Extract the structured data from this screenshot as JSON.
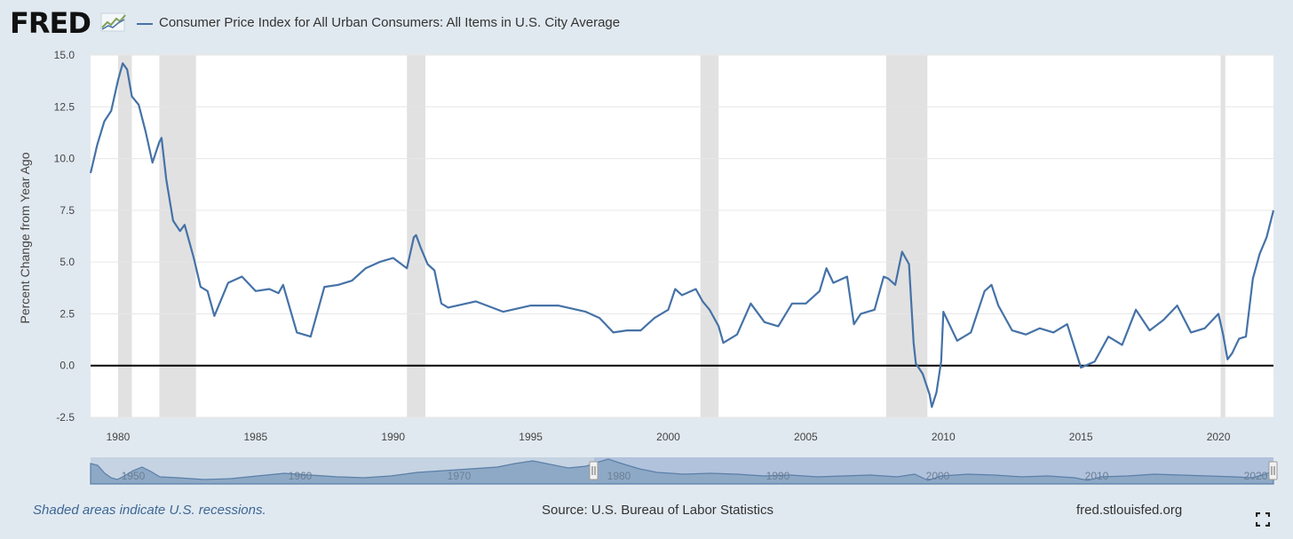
{
  "header": {
    "logo": "FRED",
    "logo_icon": "line-chart-icon",
    "series_title": "Consumer Price Index for All Urban Consumers: All Items in U.S. City Average"
  },
  "footer": {
    "recession_note": "Shaded areas indicate U.S. recessions.",
    "source": "Source: U.S. Bureau of Labor Statistics",
    "site": "fred.stlouisfed.org",
    "fullscreen_icon": "fullscreen-icon"
  },
  "colors": {
    "series": "#4572a7",
    "recession": "#e1e1e1",
    "background": "#e1e9f0",
    "plot": "#ffffff",
    "zero_line": "#000000"
  },
  "chart_data": {
    "type": "line",
    "title": "Consumer Price Index for All Urban Consumers: All Items in U.S. City Average",
    "ylabel": "Percent Change from Year Ago",
    "xlabel": "",
    "xlim": [
      1979.0,
      2022.0
    ],
    "ylim": [
      -2.5,
      15.0
    ],
    "y_ticks": [
      "15.0",
      "12.5",
      "10.0",
      "7.5",
      "5.0",
      "2.5",
      "0.0",
      "-2.5"
    ],
    "x_ticks": [
      "1980",
      "1985",
      "1990",
      "1995",
      "2000",
      "2005",
      "2010",
      "2015",
      "2020"
    ],
    "grid": "horizontal",
    "legend": "top-left",
    "recessions": [
      [
        1980.0,
        1980.5
      ],
      [
        1981.5,
        1982.83
      ],
      [
        1990.5,
        1991.17
      ],
      [
        2001.17,
        2001.83
      ],
      [
        2007.92,
        2009.42
      ],
      [
        2020.08,
        2020.25
      ]
    ],
    "series": [
      {
        "name": "Consumer Price Index for All Urban Consumers: All Items in U.S. City Average",
        "x": [
          1979.0,
          1979.25,
          1979.5,
          1979.75,
          1980.0,
          1980.17,
          1980.33,
          1980.5,
          1980.75,
          1981.0,
          1981.25,
          1981.5,
          1981.58,
          1981.75,
          1982.0,
          1982.25,
          1982.42,
          1982.75,
          1983.0,
          1983.25,
          1983.5,
          1984.0,
          1984.5,
          1985.0,
          1985.5,
          1985.83,
          1986.0,
          1986.5,
          1987.0,
          1987.5,
          1988.0,
          1988.5,
          1989.0,
          1989.5,
          1990.0,
          1990.5,
          1990.75,
          1990.83,
          1991.0,
          1991.25,
          1991.5,
          1991.75,
          1992.0,
          1993.0,
          1994.0,
          1995.0,
          1996.0,
          1997.0,
          1997.5,
          1998.0,
          1998.5,
          1999.0,
          1999.5,
          2000.0,
          2000.25,
          2000.5,
          2001.0,
          2001.25,
          2001.5,
          2001.83,
          2002.0,
          2002.5,
          2003.0,
          2003.5,
          2004.0,
          2004.5,
          2005.0,
          2005.5,
          2005.75,
          2006.0,
          2006.5,
          2006.75,
          2007.0,
          2007.5,
          2007.83,
          2008.0,
          2008.25,
          2008.5,
          2008.75,
          2008.92,
          2009.0,
          2009.25,
          2009.5,
          2009.58,
          2009.75,
          2009.92,
          2010.0,
          2010.5,
          2011.0,
          2011.5,
          2011.75,
          2012.0,
          2012.5,
          2013.0,
          2013.5,
          2014.0,
          2014.5,
          2015.0,
          2015.5,
          2016.0,
          2016.5,
          2017.0,
          2017.5,
          2018.0,
          2018.5,
          2019.0,
          2019.5,
          2020.0,
          2020.17,
          2020.33,
          2020.5,
          2020.75,
          2021.0,
          2021.25,
          2021.5,
          2021.75,
          2022.0
        ],
        "values": [
          9.3,
          10.7,
          11.8,
          12.3,
          13.8,
          14.6,
          14.3,
          13.0,
          12.6,
          11.3,
          9.8,
          10.8,
          11.0,
          9.0,
          7.0,
          6.5,
          6.8,
          5.2,
          3.8,
          3.6,
          2.4,
          4.0,
          4.3,
          3.6,
          3.7,
          3.5,
          3.9,
          1.6,
          1.4,
          3.8,
          3.9,
          4.1,
          4.7,
          5.0,
          5.2,
          4.7,
          6.2,
          6.3,
          5.7,
          4.9,
          4.6,
          3.0,
          2.8,
          3.1,
          2.6,
          2.9,
          2.9,
          2.6,
          2.3,
          1.6,
          1.7,
          1.7,
          2.3,
          2.7,
          3.7,
          3.4,
          3.7,
          3.1,
          2.7,
          1.9,
          1.1,
          1.5,
          3.0,
          2.1,
          1.9,
          3.0,
          3.0,
          3.6,
          4.7,
          4.0,
          4.3,
          2.0,
          2.5,
          2.7,
          4.3,
          4.2,
          3.9,
          5.5,
          4.9,
          1.1,
          0.1,
          -0.4,
          -1.4,
          -2.0,
          -1.3,
          0.2,
          2.6,
          1.2,
          1.6,
          3.6,
          3.9,
          2.9,
          1.7,
          1.5,
          1.8,
          1.6,
          2.0,
          -0.1,
          0.2,
          1.4,
          1.0,
          2.7,
          1.7,
          2.2,
          2.9,
          1.6,
          1.8,
          2.5,
          1.5,
          0.3,
          0.6,
          1.3,
          1.4,
          4.2,
          5.4,
          6.2,
          7.5
        ]
      }
    ]
  },
  "navigator": {
    "labels": [
      "1950",
      "1960",
      "1970",
      "1980",
      "1990",
      "2000",
      "2010",
      "2020"
    ]
  }
}
